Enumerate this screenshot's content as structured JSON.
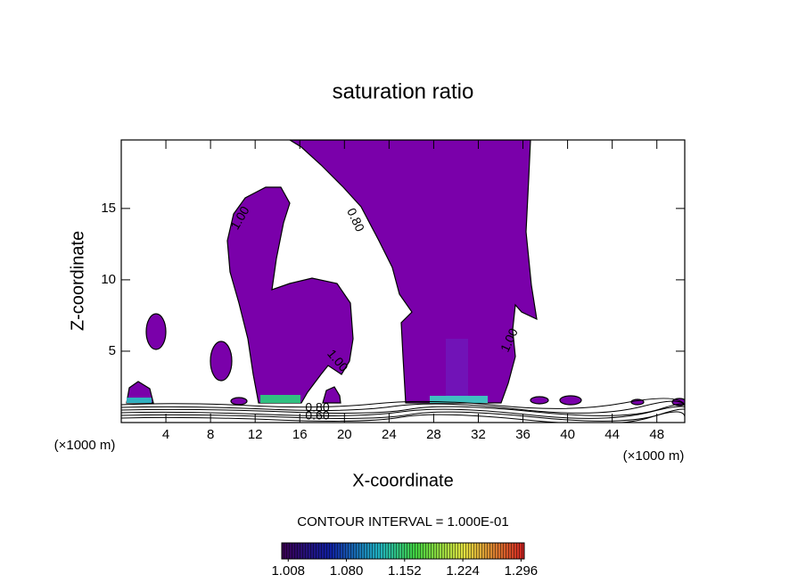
{
  "chart_data": {
    "type": "contour",
    "title": "saturation ratio",
    "x_label": "X-coordinate",
    "y_label": "Z-coordinate",
    "x_unit_label": "(×1000 m)",
    "xlim": [
      0,
      50.5
    ],
    "ylim": [
      0,
      19.8
    ],
    "xticks": [
      4,
      8,
      12,
      16,
      20,
      24,
      28,
      32,
      36,
      40,
      44,
      48
    ],
    "yticks": [
      5,
      10,
      15
    ],
    "contour_labels": [
      "1.00",
      "0.80",
      "1.00",
      "1.00",
      "0.80",
      "0.60"
    ],
    "contour_interval": "CONTOUR INTERVAL = 1.000E-01",
    "clim": [
      1.0,
      1.3
    ],
    "colorbar_ticks": [
      1.008,
      {
        "value": 1.08,
        "label": "1.080"
      },
      1.152,
      1.224,
      1.296
    ],
    "fill_color": "#7a00aa"
  }
}
